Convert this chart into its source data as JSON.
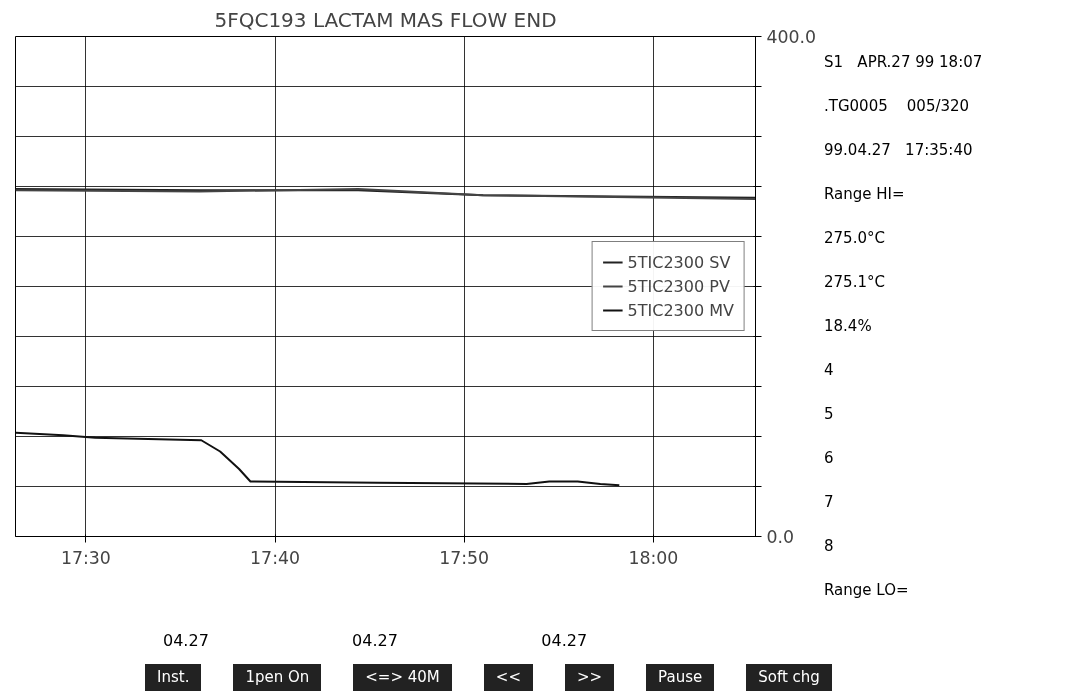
{
  "chart_data": {
    "type": "line",
    "title": "5FQC193 LACTAM MAS FLOW END",
    "xlim": [
      17.438,
      18.09
    ],
    "xticks": [
      {
        "value": 17.5,
        "label": "17:30"
      },
      {
        "value": 17.6667,
        "label": "17:40"
      },
      {
        "value": 17.8333,
        "label": "17:50"
      },
      {
        "value": 18.0,
        "label": "18:00"
      }
    ],
    "ylim": [
      0,
      400
    ],
    "yticks": [
      {
        "value": 0,
        "label": "0.0"
      },
      {
        "value": 40,
        "label": null
      },
      {
        "value": 80,
        "label": null
      },
      {
        "value": 120,
        "label": null
      },
      {
        "value": 160,
        "label": null
      },
      {
        "value": 200,
        "label": null
      },
      {
        "value": 240,
        "label": null
      },
      {
        "value": 280,
        "label": null
      },
      {
        "value": 320,
        "label": null
      },
      {
        "value": 360,
        "label": null
      },
      {
        "value": 400,
        "label": "400.0"
      }
    ],
    "grid": true,
    "legend": "right",
    "marker": "none",
    "line_style": "solid",
    "series": [
      {
        "name": "5TIC2300 SV",
        "color": "#222222",
        "x": [
          17.438,
          17.6,
          17.74,
          17.85,
          18.09
        ],
        "values": [
          278,
          277,
          277,
          273,
          271
        ]
      },
      {
        "name": "5TIC2300 PV",
        "color": "#444444",
        "x": [
          17.438,
          17.6,
          17.74,
          17.85,
          18.09
        ],
        "values": [
          277,
          276,
          278,
          273,
          270
        ]
      },
      {
        "name": "5TIC2300 MV",
        "color": "#111111",
        "x": [
          17.4383,
          17.48,
          17.5083,
          17.6017,
          17.6183,
          17.635,
          17.645,
          17.7567,
          17.8883,
          17.9083,
          17.9333,
          17.9533,
          17.97
        ],
        "values": [
          83,
          81,
          79,
          77,
          68,
          54,
          44,
          43,
          42,
          44,
          44,
          42,
          41
        ]
      }
    ],
    "annotations": [
      "S1   APR.27 99 18:07",
      ".TG0005    005/320",
      "99.04.27   17:35:40",
      "Range HI=",
      "275.0°C",
      "275.1°C",
      "18.4%",
      "4",
      "5",
      "6",
      "7",
      "8",
      "Range LO=",
      "04.27",
      "04.27",
      "04.27",
      "Inst.",
      "1pen On",
      "<=> 40M",
      "<<",
      ">>",
      "Pause",
      "Soft chg"
    ]
  }
}
